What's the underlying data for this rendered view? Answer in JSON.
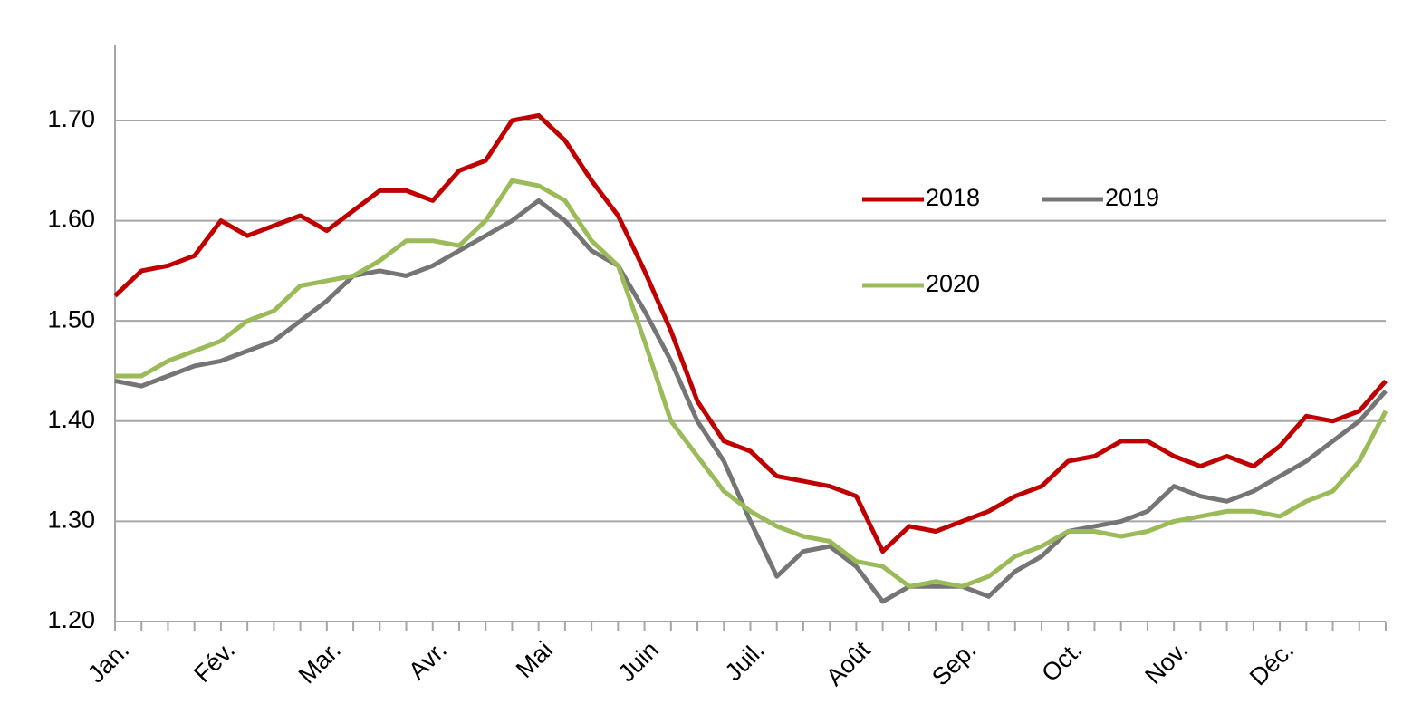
{
  "chart_data": {
    "type": "line",
    "categories": [
      "Jan.",
      null,
      null,
      null,
      "Fév.",
      null,
      null,
      null,
      "Mar.",
      null,
      null,
      null,
      "Avr.",
      null,
      null,
      null,
      "Mai",
      null,
      null,
      null,
      "Juin",
      null,
      null,
      null,
      "Juil.",
      null,
      null,
      null,
      "Août",
      null,
      null,
      null,
      "Sep.",
      null,
      null,
      null,
      "Oct.",
      null,
      null,
      null,
      "Nov.",
      null,
      null,
      null,
      "Déc.",
      null,
      null,
      null,
      null
    ],
    "series": [
      {
        "name": "2018",
        "color": "#c00000",
        "values": [
          1.525,
          1.55,
          1.555,
          1.565,
          1.6,
          1.585,
          1.595,
          1.605,
          1.59,
          1.61,
          1.63,
          1.63,
          1.62,
          1.65,
          1.66,
          1.7,
          1.705,
          1.68,
          1.64,
          1.605,
          1.55,
          1.49,
          1.42,
          1.38,
          1.37,
          1.345,
          1.34,
          1.335,
          1.325,
          1.27,
          1.295,
          1.29,
          1.3,
          1.31,
          1.325,
          1.335,
          1.36,
          1.365,
          1.38,
          1.38,
          1.365,
          1.355,
          1.365,
          1.355,
          1.375,
          1.405,
          1.4,
          1.41,
          1.44
        ]
      },
      {
        "name": "2019",
        "color": "#757575",
        "values": [
          1.44,
          1.435,
          1.445,
          1.455,
          1.46,
          1.47,
          1.48,
          1.5,
          1.52,
          1.545,
          1.55,
          1.545,
          1.555,
          1.57,
          1.585,
          1.6,
          1.62,
          1.6,
          1.57,
          1.555,
          1.51,
          1.46,
          1.4,
          1.36,
          1.3,
          1.245,
          1.27,
          1.275,
          1.255,
          1.22,
          1.235,
          1.235,
          1.235,
          1.225,
          1.25,
          1.265,
          1.29,
          1.295,
          1.3,
          1.31,
          1.335,
          1.325,
          1.32,
          1.33,
          1.345,
          1.36,
          1.38,
          1.4,
          1.43
        ]
      },
      {
        "name": "2020",
        "color": "#9bbb59",
        "values": [
          1.445,
          1.445,
          1.46,
          1.47,
          1.48,
          1.5,
          1.51,
          1.535,
          1.54,
          1.545,
          1.56,
          1.58,
          1.58,
          1.575,
          1.6,
          1.64,
          1.635,
          1.62,
          1.58,
          1.555,
          1.48,
          1.4,
          1.365,
          1.33,
          1.31,
          1.295,
          1.285,
          1.28,
          1.26,
          1.255,
          1.235,
          1.24,
          1.235,
          1.245,
          1.265,
          1.275,
          1.29,
          1.29,
          1.285,
          1.29,
          1.3,
          1.305,
          1.31,
          1.31,
          1.305,
          1.32,
          1.33,
          1.36,
          1.41
        ]
      }
    ],
    "ylim": [
      1.2,
      1.775
    ],
    "yticks": [
      {
        "value": 1.2,
        "label": "1.20"
      },
      {
        "value": 1.3,
        "label": "1.30"
      },
      {
        "value": 1.4,
        "label": "1.40"
      },
      {
        "value": 1.5,
        "label": "1.50"
      },
      {
        "value": 1.6,
        "label": "1.60"
      },
      {
        "value": 1.7,
        "label": "1.70"
      }
    ],
    "grid": true
  }
}
